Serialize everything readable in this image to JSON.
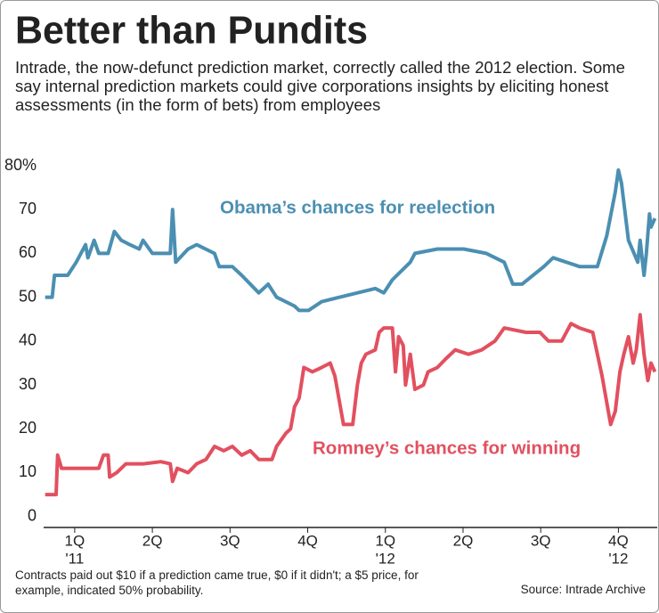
{
  "chart_data": {
    "type": "line",
    "title": "Better than Pundits",
    "subtitle": "Intrade, the now-defunct prediction market, correctly called the 2012 election. Some say internal prediction markets could give corporations insights by eliciting honest assessments (in the form of bets) from employees",
    "footnote": "Contracts paid out $10 if a prediction came true, $0 if it didn't; a $5 price, for example, indicated 50% probability.",
    "source": "Source: Intrade Archive",
    "xlim": [
      0.1,
      8.0
    ],
    "xticks": [
      {
        "value": 0.5,
        "label": "1Q"
      },
      {
        "value": 1.5,
        "label": "2Q"
      },
      {
        "value": 2.5,
        "label": "3Q"
      },
      {
        "value": 3.5,
        "label": "4Q"
      },
      {
        "value": 4.5,
        "label": "1Q"
      },
      {
        "value": 5.5,
        "label": "2Q"
      },
      {
        "value": 6.5,
        "label": "3Q"
      },
      {
        "value": 7.5,
        "label": "4Q"
      }
    ],
    "year_labels": [
      {
        "value": 0.5,
        "label": "'11"
      },
      {
        "value": 4.5,
        "label": "'12"
      },
      {
        "value": 7.5,
        "label": "'12"
      }
    ],
    "ylim": [
      -2.5,
      80
    ],
    "yticks": [
      0,
      10,
      20,
      30,
      40,
      50,
      60,
      70,
      {
        "value": 80,
        "label": "80%"
      }
    ],
    "grid": false,
    "series": [
      {
        "name": "Obama’s chances for reelection",
        "color": "#4b8fb2",
        "x": [
          0.12,
          0.21,
          0.24,
          0.41,
          0.52,
          0.64,
          0.67,
          0.75,
          0.81,
          0.93,
          1.01,
          1.1,
          1.21,
          1.33,
          1.38,
          1.5,
          1.73,
          1.76,
          1.8,
          1.96,
          2.07,
          2.3,
          2.36,
          2.53,
          2.65,
          2.87,
          2.99,
          3.1,
          3.33,
          3.39,
          3.51,
          3.68,
          3.91,
          4.37,
          4.48,
          4.59,
          4.82,
          4.88,
          5.17,
          5.51,
          5.8,
          6.03,
          6.14,
          6.26,
          6.54,
          6.66,
          7.0,
          7.23,
          7.35,
          7.46,
          7.5,
          7.54,
          7.63,
          7.75,
          7.78,
          7.83,
          7.86,
          7.9,
          7.92,
          7.97
        ],
        "values": [
          50,
          50,
          55,
          55,
          58,
          62,
          59,
          63,
          60,
          60,
          65,
          63,
          62,
          61,
          63,
          60,
          60,
          70,
          58,
          61,
          62,
          60,
          57,
          57,
          55,
          51,
          53,
          50,
          48,
          47,
          47,
          49,
          50,
          52,
          51,
          54,
          58,
          60,
          61,
          61,
          60,
          58,
          53,
          53,
          57,
          59,
          57,
          57,
          64,
          74,
          79,
          76,
          63,
          58,
          63,
          55,
          60,
          69,
          66,
          68
        ]
      },
      {
        "name": "Romney’s chances for winning",
        "color": "#e2505f",
        "x": [
          0.12,
          0.26,
          0.28,
          0.33,
          0.58,
          0.81,
          0.87,
          0.93,
          0.95,
          1.04,
          1.16,
          1.38,
          1.61,
          1.73,
          1.76,
          1.82,
          1.96,
          2.07,
          2.19,
          2.3,
          2.42,
          2.53,
          2.65,
          2.76,
          2.87,
          3.04,
          3.1,
          3.22,
          3.28,
          3.33,
          3.39,
          3.45,
          3.56,
          3.68,
          3.79,
          3.85,
          3.91,
          3.96,
          4.08,
          4.14,
          4.19,
          4.25,
          4.37,
          4.42,
          4.48,
          4.59,
          4.63,
          4.67,
          4.73,
          4.76,
          4.82,
          4.88,
          4.99,
          5.05,
          5.17,
          5.28,
          5.4,
          5.57,
          5.74,
          5.91,
          6.03,
          6.31,
          6.49,
          6.6,
          6.77,
          6.89,
          7.0,
          7.17,
          7.29,
          7.4,
          7.46,
          7.52,
          7.57,
          7.63,
          7.69,
          7.73,
          7.78,
          7.83,
          7.88,
          7.92,
          7.97
        ],
        "values": [
          5,
          5,
          14,
          11,
          11,
          11,
          14,
          14,
          9,
          10,
          12,
          12,
          12.5,
          12,
          8,
          11,
          10,
          12,
          13,
          16,
          15,
          16,
          14,
          15,
          13,
          13,
          16,
          19,
          20,
          25,
          27,
          34,
          33,
          34,
          35,
          32,
          26,
          21,
          21,
          30,
          35,
          37,
          38,
          42,
          43,
          43,
          33,
          41,
          39,
          30,
          37,
          29,
          30,
          33,
          34,
          36,
          38,
          37,
          38,
          40,
          43,
          42,
          42,
          40,
          40,
          44,
          43,
          42,
          32,
          21,
          24,
          33,
          37,
          41,
          35,
          38,
          46,
          37,
          31,
          35,
          33
        ]
      }
    ]
  }
}
